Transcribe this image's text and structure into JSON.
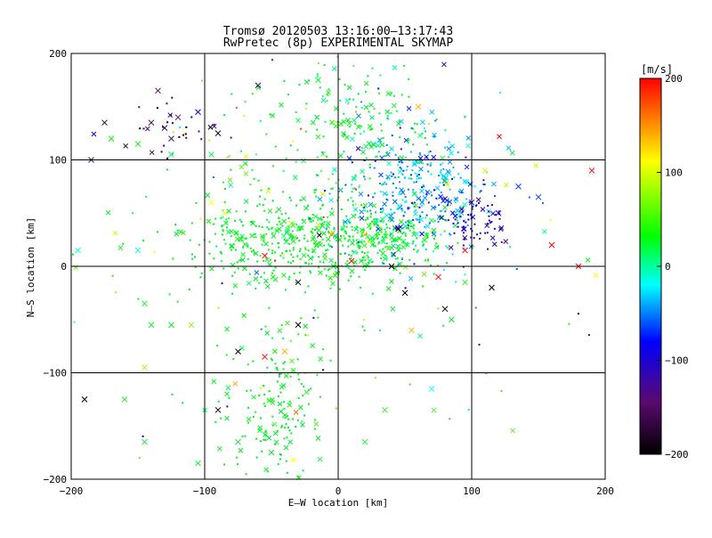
{
  "chart_data": {
    "type": "scatter",
    "title": "Tromsø 20120503 13:16:00–13:17:43",
    "subtitle": "RwPretec (8p) EXPERIMENTAL SKYMAP",
    "xlabel": "E–W location [km]",
    "ylabel": "N–S location [km]",
    "xlim": [
      -200,
      200
    ],
    "ylim": [
      -200,
      200
    ],
    "x_ticks": [
      -200,
      -100,
      0,
      100,
      200
    ],
    "y_ticks": [
      -200,
      -100,
      0,
      100,
      200
    ],
    "x_tick_labels": [
      "−200",
      "−100",
      "0",
      "100",
      "200"
    ],
    "y_tick_labels": [
      "−200",
      "−100",
      "0",
      "100",
      "200"
    ],
    "grid": true,
    "colorbar": {
      "label": "[m/s]",
      "range": [
        -200,
        200
      ],
      "ticks": [
        200,
        100,
        0,
        -100,
        -200
      ],
      "tick_labels": [
        "200",
        "100",
        "0",
        "−100",
        "−200"
      ],
      "colors": [
        "#000000",
        "#5a0a6e",
        "#0000ff",
        "#00ffff",
        "#00ff00",
        "#ffff00",
        "#ff0000"
      ]
    },
    "markers": [
      "dot",
      "cross"
    ],
    "clusters": [
      {
        "cx": -40,
        "cy": 25,
        "sx": 38,
        "sy": 22,
        "v": -8,
        "vs": 18,
        "n": 380
      },
      {
        "cx": 55,
        "cy": 70,
        "sx": 30,
        "sy": 28,
        "v": -95,
        "vs": 15,
        "n": 330
      },
      {
        "cx": 20,
        "cy": 130,
        "sx": 30,
        "sy": 35,
        "v": -20,
        "vs": 25,
        "n": 160
      },
      {
        "cx": -45,
        "cy": -130,
        "sx": 18,
        "sy": 45,
        "v": -10,
        "vs": 15,
        "n": 170
      },
      {
        "cx": 30,
        "cy": 25,
        "sx": 25,
        "sy": 15,
        "v": -20,
        "vs": 20,
        "n": 220
      },
      {
        "cx": 105,
        "cy": 40,
        "sx": 12,
        "sy": 15,
        "v": -140,
        "vs": 15,
        "n": 70
      },
      {
        "cx": -40,
        "cy": 120,
        "sx": 35,
        "sy": 40,
        "v": 10,
        "vs": 50,
        "n": 50
      },
      {
        "cx": -130,
        "cy": 130,
        "sx": 20,
        "sy": 15,
        "v": -175,
        "vs": 20,
        "n": 30
      },
      {
        "cx": 0,
        "cy": 0,
        "sx": 120,
        "sy": 120,
        "v": 0,
        "vs": 90,
        "n": 180
      }
    ],
    "crosses": [
      {
        "x": -130,
        "y": 130,
        "v": -175
      },
      {
        "x": -125,
        "y": 120,
        "v": -170
      },
      {
        "x": -140,
        "y": 135,
        "v": -180
      },
      {
        "x": -120,
        "y": 140,
        "v": -160
      },
      {
        "x": -175,
        "y": 135,
        "v": -185
      },
      {
        "x": -185,
        "y": 100,
        "v": -160
      },
      {
        "x": -135,
        "y": 165,
        "v": -170
      },
      {
        "x": -105,
        "y": 145,
        "v": -120
      },
      {
        "x": -90,
        "y": 125,
        "v": -190
      },
      {
        "x": -60,
        "y": 170,
        "v": -175
      },
      {
        "x": -15,
        "y": 175,
        "v": -30
      },
      {
        "x": 45,
        "y": 35,
        "v": -200
      },
      {
        "x": 40,
        "y": 0,
        "v": -200
      },
      {
        "x": 50,
        "y": -25,
        "v": -200
      },
      {
        "x": 80,
        "y": -40,
        "v": -200
      },
      {
        "x": 115,
        "y": -20,
        "v": -200
      },
      {
        "x": -30,
        "y": -15,
        "v": -200
      },
      {
        "x": -30,
        "y": -55,
        "v": -200
      },
      {
        "x": -55,
        "y": -85,
        "v": 200
      },
      {
        "x": -90,
        "y": -135,
        "v": -200
      },
      {
        "x": -190,
        "y": -125,
        "v": -200
      },
      {
        "x": 10,
        "y": 5,
        "v": 200
      },
      {
        "x": -55,
        "y": 10,
        "v": 200
      },
      {
        "x": 95,
        "y": 15,
        "v": 200
      },
      {
        "x": 160,
        "y": 20,
        "v": 200
      },
      {
        "x": 190,
        "y": 90,
        "v": 200
      },
      {
        "x": 180,
        "y": 0,
        "v": 200
      },
      {
        "x": 75,
        "y": -10,
        "v": 200
      },
      {
        "x": 100,
        "y": 60,
        "v": -130
      },
      {
        "x": 120,
        "y": 50,
        "v": -130
      },
      {
        "x": 135,
        "y": 75,
        "v": -110
      },
      {
        "x": 150,
        "y": 65,
        "v": -110
      },
      {
        "x": -170,
        "y": 120,
        "v": -20
      },
      {
        "x": -150,
        "y": 115,
        "v": -20
      },
      {
        "x": -125,
        "y": 105,
        "v": -40
      },
      {
        "x": -95,
        "y": 105,
        "v": -40
      },
      {
        "x": -150,
        "y": 15,
        "v": -70
      },
      {
        "x": -195,
        "y": 15,
        "v": -70
      },
      {
        "x": -145,
        "y": -35,
        "v": -30
      },
      {
        "x": -140,
        "y": -55,
        "v": -30
      },
      {
        "x": -125,
        "y": -55,
        "v": -10
      },
      {
        "x": -110,
        "y": -55,
        "v": 60
      },
      {
        "x": -145,
        "y": -95,
        "v": 70
      },
      {
        "x": -160,
        "y": -125,
        "v": 20
      },
      {
        "x": -145,
        "y": -165,
        "v": 10
      },
      {
        "x": -105,
        "y": -185,
        "v": -10
      },
      {
        "x": -75,
        "y": -165,
        "v": 5
      },
      {
        "x": -50,
        "y": -175,
        "v": 5
      },
      {
        "x": -40,
        "y": -140,
        "v": 10
      },
      {
        "x": 20,
        "y": -165,
        "v": 10
      },
      {
        "x": 35,
        "y": -135,
        "v": 20
      },
      {
        "x": 70,
        "y": -115,
        "v": -80
      },
      {
        "x": 95,
        "y": -15,
        "v": 20
      },
      {
        "x": 85,
        "y": -50,
        "v": 10
      },
      {
        "x": -95,
        "y": 60,
        "v": 100
      },
      {
        "x": -85,
        "y": 50,
        "v": 100
      },
      {
        "x": -35,
        "y": 40,
        "v": 60
      },
      {
        "x": -5,
        "y": 30,
        "v": 140
      },
      {
        "x": 20,
        "y": 30,
        "v": 130
      },
      {
        "x": 110,
        "y": 90,
        "v": 110
      },
      {
        "x": 60,
        "y": 150,
        "v": 130
      },
      {
        "x": 55,
        "y": -60,
        "v": 130
      },
      {
        "x": -40,
        "y": -80,
        "v": 130
      },
      {
        "x": -75,
        "y": -80,
        "v": -200
      }
    ]
  }
}
